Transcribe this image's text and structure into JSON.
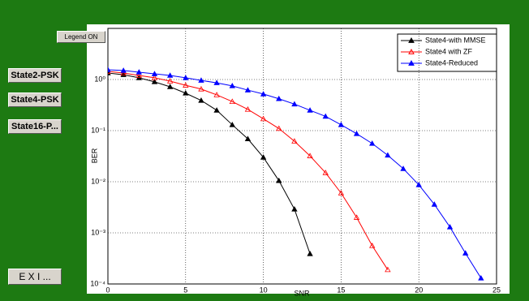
{
  "buttons": {
    "legend": "Legend ON",
    "state2": "State2-PSK",
    "state4": "State4-PSK",
    "state16": "State16-P...",
    "exit": "E X I ..."
  },
  "chart_data": {
    "type": "line",
    "xlabel": "SNR",
    "ylabel": "BER",
    "log_y": true,
    "grid": true,
    "legend_position": "upper right",
    "xlim": [
      0,
      25
    ],
    "xticks": [
      0,
      5,
      10,
      15,
      20,
      25
    ],
    "ylim": [
      0.0001,
      10
    ],
    "yticks": [
      {
        "value": 0.0001,
        "label": "10⁻⁴"
      },
      {
        "value": 0.001,
        "label": "10⁻³"
      },
      {
        "value": 0.01,
        "label": "10⁻²"
      },
      {
        "value": 0.1,
        "label": "10⁻¹"
      },
      {
        "value": 1,
        "label": "10⁰"
      }
    ],
    "series": [
      {
        "name": "State4-with MMSE",
        "color": "#000000",
        "marker": "triangle-up",
        "x": [
          0,
          1,
          2,
          3,
          4,
          5,
          6,
          7,
          8,
          9,
          10,
          11,
          12,
          13
        ],
        "values": [
          1.34,
          1.24,
          1.08,
          0.9,
          0.72,
          0.54,
          0.39,
          0.25,
          0.13,
          0.069,
          0.03,
          0.0105,
          0.0029,
          0.00039
        ]
      },
      {
        "name": "State4 with ZF",
        "color": "#ff0000",
        "marker": "triangle-open",
        "x": [
          0,
          1,
          2,
          3,
          4,
          5,
          6,
          7,
          8,
          9,
          10,
          11,
          12,
          13,
          14,
          15,
          16,
          17,
          18
        ],
        "values": [
          1.44,
          1.34,
          1.2,
          1.08,
          0.93,
          0.77,
          0.65,
          0.5,
          0.37,
          0.26,
          0.17,
          0.11,
          0.062,
          0.032,
          0.015,
          0.006,
          0.002,
          0.00056,
          0.00019
        ]
      },
      {
        "name": "State4-Reduced",
        "color": "#0000ff",
        "marker": "triangle-up",
        "x": [
          0,
          1,
          2,
          3,
          4,
          5,
          6,
          7,
          8,
          9,
          10,
          11,
          12,
          13,
          14,
          15,
          16,
          17,
          18,
          19,
          20,
          21,
          22,
          23,
          24
        ],
        "values": [
          1.55,
          1.5,
          1.39,
          1.29,
          1.2,
          1.08,
          0.96,
          0.86,
          0.75,
          0.62,
          0.52,
          0.42,
          0.33,
          0.25,
          0.19,
          0.13,
          0.087,
          0.056,
          0.033,
          0.018,
          0.0087,
          0.0036,
          0.0013,
          0.0004,
          0.00013
        ]
      }
    ]
  }
}
